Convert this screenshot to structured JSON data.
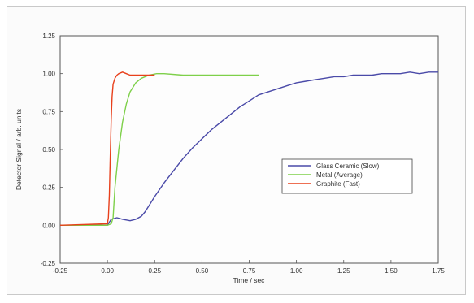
{
  "chart_data": {
    "type": "line",
    "title": "",
    "xlabel": "Time / sec",
    "ylabel": "Detector Signal / arb. units",
    "xlim": [
      -0.25,
      1.75
    ],
    "ylim": [
      -0.25,
      1.25
    ],
    "x_ticks": [
      "-0.25",
      "0.00",
      "0.25",
      "0.50",
      "0.75",
      "1.00",
      "1.25",
      "1.50",
      "1.75"
    ],
    "y_ticks": [
      "1.25",
      "1.00",
      "0.75",
      "0.50",
      "0.25",
      "0.00",
      "-0.25"
    ],
    "grid": false,
    "legend_position": "center-right",
    "series": [
      {
        "name": "Glass Ceramic (Slow)",
        "color": "#4a4aa8",
        "x": [
          -0.25,
          0.0,
          0.02,
          0.05,
          0.08,
          0.12,
          0.15,
          0.18,
          0.2,
          0.22,
          0.25,
          0.3,
          0.35,
          0.4,
          0.45,
          0.5,
          0.55,
          0.6,
          0.65,
          0.7,
          0.75,
          0.8,
          0.85,
          0.9,
          0.95,
          1.0,
          1.05,
          1.1,
          1.15,
          1.2,
          1.25,
          1.3,
          1.35,
          1.4,
          1.45,
          1.5,
          1.55,
          1.6,
          1.65,
          1.7,
          1.75
        ],
        "y": [
          0.0,
          0.0,
          0.04,
          0.05,
          0.04,
          0.03,
          0.04,
          0.06,
          0.09,
          0.13,
          0.19,
          0.28,
          0.36,
          0.44,
          0.51,
          0.57,
          0.63,
          0.68,
          0.73,
          0.78,
          0.82,
          0.86,
          0.88,
          0.9,
          0.92,
          0.94,
          0.95,
          0.96,
          0.97,
          0.98,
          0.98,
          0.99,
          0.99,
          0.99,
          1.0,
          1.0,
          1.0,
          1.01,
          1.0,
          1.01,
          1.01
        ]
      },
      {
        "name": "Metal (Average)",
        "color": "#7ed04a",
        "x": [
          -0.25,
          0.0,
          0.02,
          0.03,
          0.04,
          0.06,
          0.08,
          0.1,
          0.12,
          0.15,
          0.18,
          0.22,
          0.26,
          0.3,
          0.4,
          0.5,
          0.6,
          0.7,
          0.8
        ],
        "y": [
          0.0,
          0.0,
          0.01,
          0.05,
          0.25,
          0.5,
          0.68,
          0.8,
          0.88,
          0.94,
          0.97,
          0.99,
          1.0,
          1.0,
          0.99,
          0.99,
          0.99,
          0.99,
          0.99
        ]
      },
      {
        "name": "Graphite (Fast)",
        "color": "#e8401c",
        "x": [
          -0.25,
          0.0,
          0.005,
          0.01,
          0.015,
          0.02,
          0.025,
          0.03,
          0.04,
          0.05,
          0.06,
          0.08,
          0.1,
          0.12,
          0.15,
          0.2,
          0.25
        ],
        "y": [
          0.0,
          0.01,
          0.05,
          0.2,
          0.45,
          0.7,
          0.85,
          0.93,
          0.97,
          0.99,
          1.0,
          1.01,
          1.0,
          0.99,
          0.99,
          0.99,
          0.99
        ]
      }
    ]
  }
}
